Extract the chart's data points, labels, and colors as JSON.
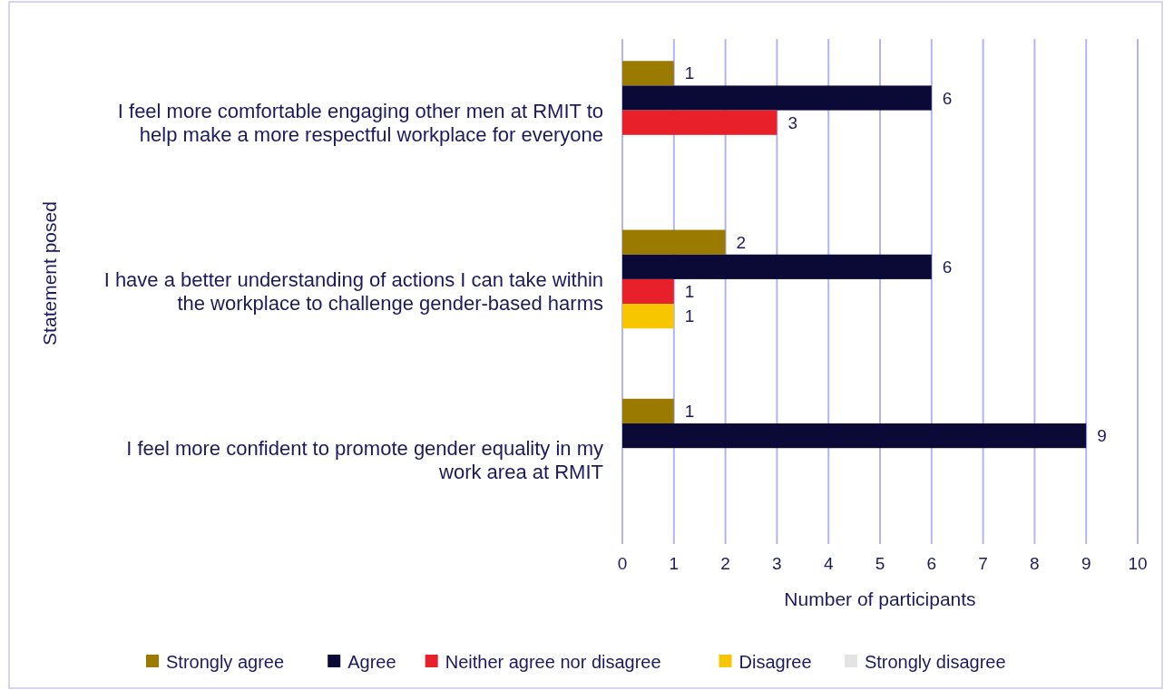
{
  "chart_data": {
    "type": "bar",
    "orientation": "horizontal",
    "categories": [
      "I feel more comfortable engaging other men at RMIT to help make a more respectful workplace for everyone",
      "I have a better understanding of actions I can take within the workplace to challenge gender-based harms",
      "I feel more confident to promote gender equality in my work area at RMIT"
    ],
    "series": [
      {
        "name": "Strongly agree",
        "color": "#9a7b00",
        "values": [
          1,
          2,
          1
        ]
      },
      {
        "name": "Agree",
        "color": "#0b0a36",
        "values": [
          6,
          6,
          9
        ]
      },
      {
        "name": "Neither agree nor disagree",
        "color": "#e8202a",
        "values": [
          3,
          1,
          null
        ]
      },
      {
        "name": "Disagree",
        "color": "#f7c600",
        "values": [
          null,
          1,
          null
        ]
      },
      {
        "name": "Strongly disagree",
        "color": "#e3e3e3",
        "values": [
          null,
          null,
          null
        ]
      }
    ],
    "xlim": [
      0,
      10
    ],
    "xticks": [
      0,
      1,
      2,
      3,
      4,
      5,
      6,
      7,
      8,
      9,
      10
    ],
    "xlabel": "Number of participants",
    "ylabel": "Statement posed",
    "grid": "x",
    "legend": "bottom",
    "data_labels": true
  }
}
